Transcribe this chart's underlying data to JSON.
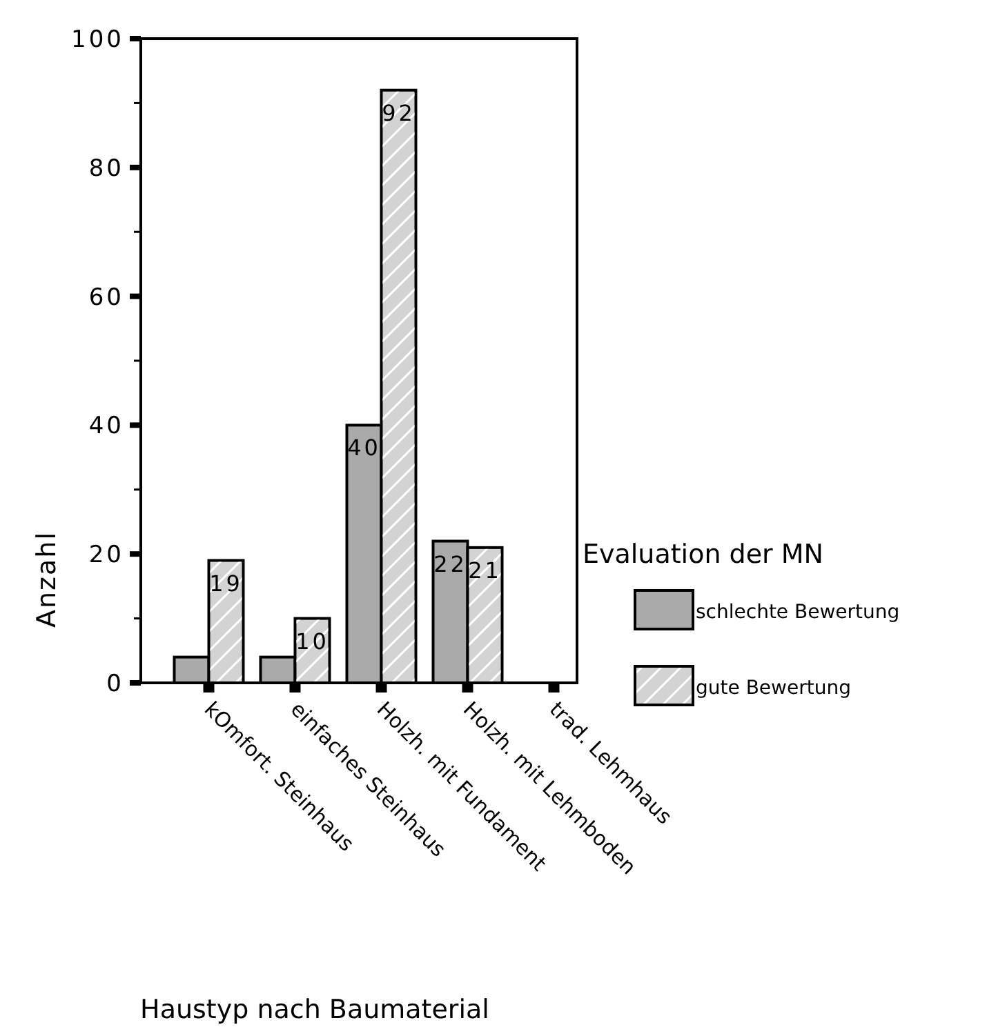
{
  "chart_data": {
    "type": "bar",
    "xlabel": "Haustyp nach Baumaterial",
    "ylabel": "Anzahl",
    "legend_title": "Evaluation der MN",
    "categories": [
      "kOmfort. Steinhaus",
      "einfaches Steinhaus",
      "Holzh. mit Fundament",
      "Holzh. mit Lehmboden",
      "trad. Lehmhaus"
    ],
    "series": [
      {
        "name": "schlechte Bewertung",
        "color": "#aaaaaa",
        "values": [
          4,
          4,
          40,
          22,
          0
        ],
        "value_labels": [
          null,
          null,
          "40",
          "22",
          null
        ]
      },
      {
        "name": "gute Bewertung",
        "color": "#d3d3d3",
        "values": [
          19,
          10,
          92,
          21,
          null
        ],
        "value_labels": [
          "19",
          "10",
          "92",
          "21",
          null
        ]
      }
    ],
    "ylim": [
      0,
      100
    ],
    "yticks": [
      0,
      {
        "value": 10,
        "label": null
      },
      20,
      {
        "value": 30,
        "label": null
      },
      40,
      {
        "value": 50,
        "label": null
      },
      60,
      {
        "value": 70,
        "label": null
      },
      80,
      {
        "value": 90,
        "label": null
      },
      100
    ],
    "legend": "right",
    "grid": false
  }
}
